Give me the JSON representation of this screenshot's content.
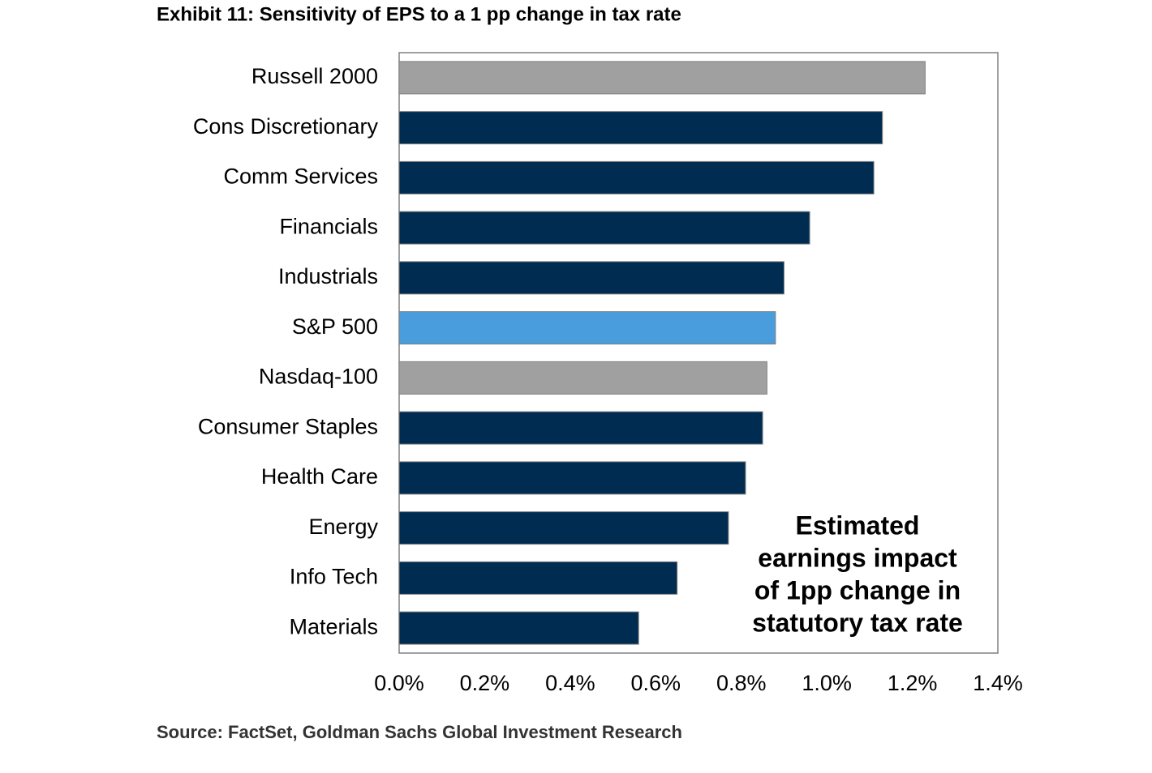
{
  "chart_data": {
    "type": "bar",
    "orientation": "horizontal",
    "title": "Exhibit 11: Sensitivity of EPS to a 1 pp change in tax rate",
    "categories": [
      "Russell 2000",
      "Cons Discretionary",
      "Comm Services",
      "Financials",
      "Industrials",
      "S&P 500",
      "Nasdaq-100",
      "Consumer Staples",
      "Health Care",
      "Energy",
      "Info Tech",
      "Materials"
    ],
    "values": [
      1.23,
      1.13,
      1.11,
      0.96,
      0.9,
      0.88,
      0.86,
      0.85,
      0.81,
      0.77,
      0.65,
      0.56
    ],
    "colors": [
      "#a0a0a0",
      "#002c52",
      "#002c52",
      "#002c52",
      "#002c52",
      "#4a9ddc",
      "#a0a0a0",
      "#002c52",
      "#002c52",
      "#002c52",
      "#002c52",
      "#002c52"
    ],
    "xlim": [
      0,
      1.4
    ],
    "xticks": [
      {
        "value": 0,
        "label": "0.0%"
      },
      {
        "value": 0.2,
        "label": "0.2%"
      },
      {
        "value": 0.4,
        "label": "0.4%"
      },
      {
        "value": 0.6,
        "label": "0.6%"
      },
      {
        "value": 0.8,
        "label": "0.8%"
      },
      {
        "value": 1.0,
        "label": "1.0%"
      },
      {
        "value": 1.2,
        "label": "1.2%"
      },
      {
        "value": 1.4,
        "label": "1.4%"
      }
    ],
    "grid": false,
    "annotation": [
      "Estimated",
      "earnings impact",
      "of 1pp change in",
      "statutory tax rate"
    ],
    "source": "Source: FactSet, Goldman Sachs Global Investment Research"
  }
}
